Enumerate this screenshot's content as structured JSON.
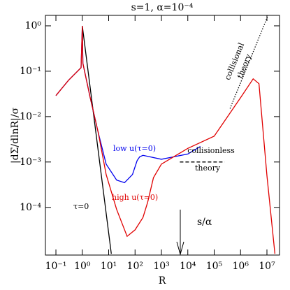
{
  "chart_data": {
    "type": "line",
    "title": "s=1,  α=10⁻⁴",
    "x_label": "R",
    "y_label": "|dΣ/dlnR|/σ",
    "log_x": true,
    "log_y": true,
    "xlim": [
      0.04,
      30000000
    ],
    "ylim": [
      8.9e-06,
      1.7
    ],
    "xticks": [
      {
        "value": 0.1,
        "label": "10⁻¹"
      },
      {
        "value": 1,
        "label": "10⁰"
      },
      {
        "value": 10,
        "label": "10¹"
      },
      {
        "value": 100,
        "label": "10²"
      },
      {
        "value": 1000,
        "label": "10³"
      },
      {
        "value": 10000,
        "label": "10⁴"
      },
      {
        "value": 100000,
        "label": "10⁵"
      },
      {
        "value": 1000000,
        "label": "10⁶"
      },
      {
        "value": 10000000,
        "label": "10⁷"
      }
    ],
    "yticks": [
      {
        "value": 0.0001,
        "label": "10⁻⁴"
      },
      {
        "value": 0.001,
        "label": "10⁻³"
      },
      {
        "value": 0.01,
        "label": "10⁻²"
      },
      {
        "value": 0.1,
        "label": "10⁻¹"
      },
      {
        "value": 1,
        "label": "10⁰"
      }
    ],
    "series": [
      {
        "color": "#0000ee",
        "style": "solid",
        "x": [
          0.1,
          0.3,
          0.9,
          1,
          1.05,
          2,
          4,
          8,
          20,
          40,
          80,
          120,
          150,
          200,
          1000,
          10000,
          30000
        ],
        "values": [
          0.029,
          0.063,
          0.12,
          1,
          0.15,
          0.026,
          0.0045,
          0.0009,
          0.0004,
          0.00035,
          0.00053,
          0.00107,
          0.0013,
          0.0014,
          0.00115,
          0.0015,
          0.0022
        ]
      },
      {
        "color": "#e00000",
        "style": "solid",
        "x": [
          0.1,
          0.3,
          0.9,
          1,
          1.05,
          2,
          4,
          8,
          20,
          50,
          100,
          200,
          300,
          500,
          1000,
          10000,
          100000,
          1000000,
          3000000,
          5000000,
          10000000,
          20000000
        ],
        "values": [
          0.029,
          0.063,
          0.12,
          1,
          0.15,
          0.026,
          0.0045,
          0.00053,
          9e-05,
          2.3e-05,
          3.2e-05,
          6e-05,
          0.00013,
          0.00045,
          0.0009,
          0.002,
          0.0037,
          0.026,
          0.068,
          0.053,
          0.0005,
          9.5e-06
        ]
      },
      {
        "color": "#000000",
        "style": "solid",
        "x": [
          1,
          12.6
        ],
        "values": [
          1,
          9.5e-06
        ]
      },
      {
        "color": "#000000",
        "style": "dotted",
        "x": [
          400000,
          11000000
        ],
        "values": [
          0.015,
          1.7
        ]
      },
      {
        "color": "#000000",
        "style": "dashed",
        "x": [
          5000,
          250000
        ],
        "values": [
          0.001,
          0.001
        ]
      }
    ],
    "annotations": [
      {
        "text": "low u(τ=0)",
        "color": "#0000ee"
      },
      {
        "text": "high u(τ=0)",
        "color": "#e00000"
      },
      {
        "text": "τ=0",
        "color": "#000000"
      },
      {
        "text": "collisionless",
        "color": "#000000"
      },
      {
        "text": "theory",
        "color": "#000000"
      },
      {
        "text": "collisional",
        "color": "#000000"
      },
      {
        "text": "theory",
        "color": "#000000"
      },
      {
        "text": "s/α",
        "color": "#000000"
      }
    ]
  }
}
